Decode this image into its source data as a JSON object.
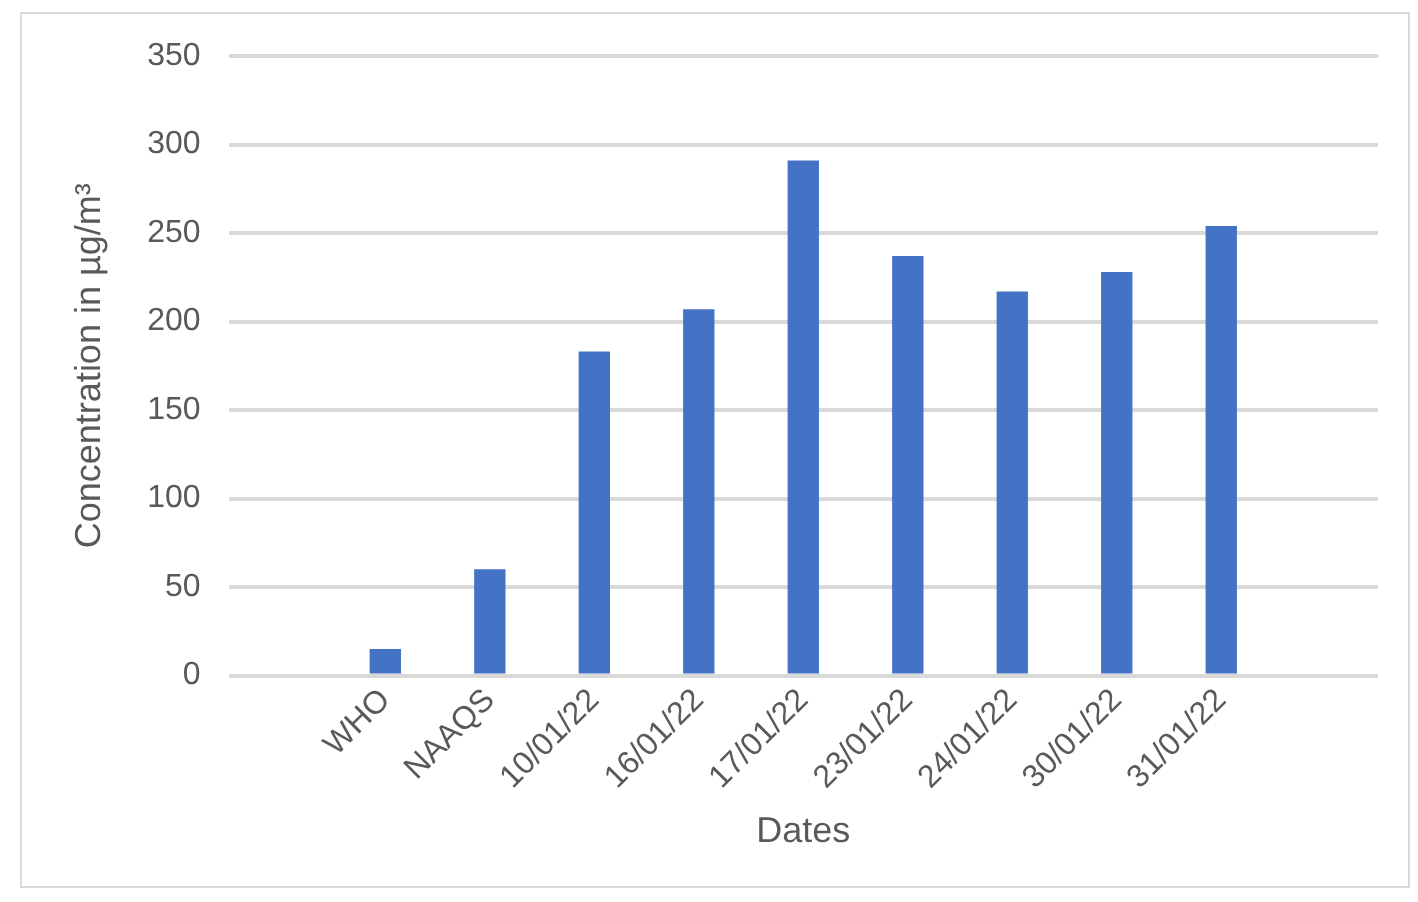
{
  "chart_data": {
    "type": "bar",
    "xlabel": "Dates",
    "ylabel": "Concentration in µg/m³",
    "categories": [
      null,
      "WHO",
      "NAAQS",
      "10/01/22",
      "16/01/22",
      "17/01/22",
      "23/01/22",
      "24/01/22",
      "30/01/22",
      "31/01/22",
      null
    ],
    "values": [
      null,
      15,
      60,
      183,
      207,
      291,
      237,
      217,
      228,
      254,
      null
    ],
    "color": "#4472c4",
    "ylim": [
      0,
      350
    ],
    "yticks": [
      0,
      50,
      100,
      150,
      200,
      250,
      300,
      350
    ],
    "grid": "y"
  }
}
